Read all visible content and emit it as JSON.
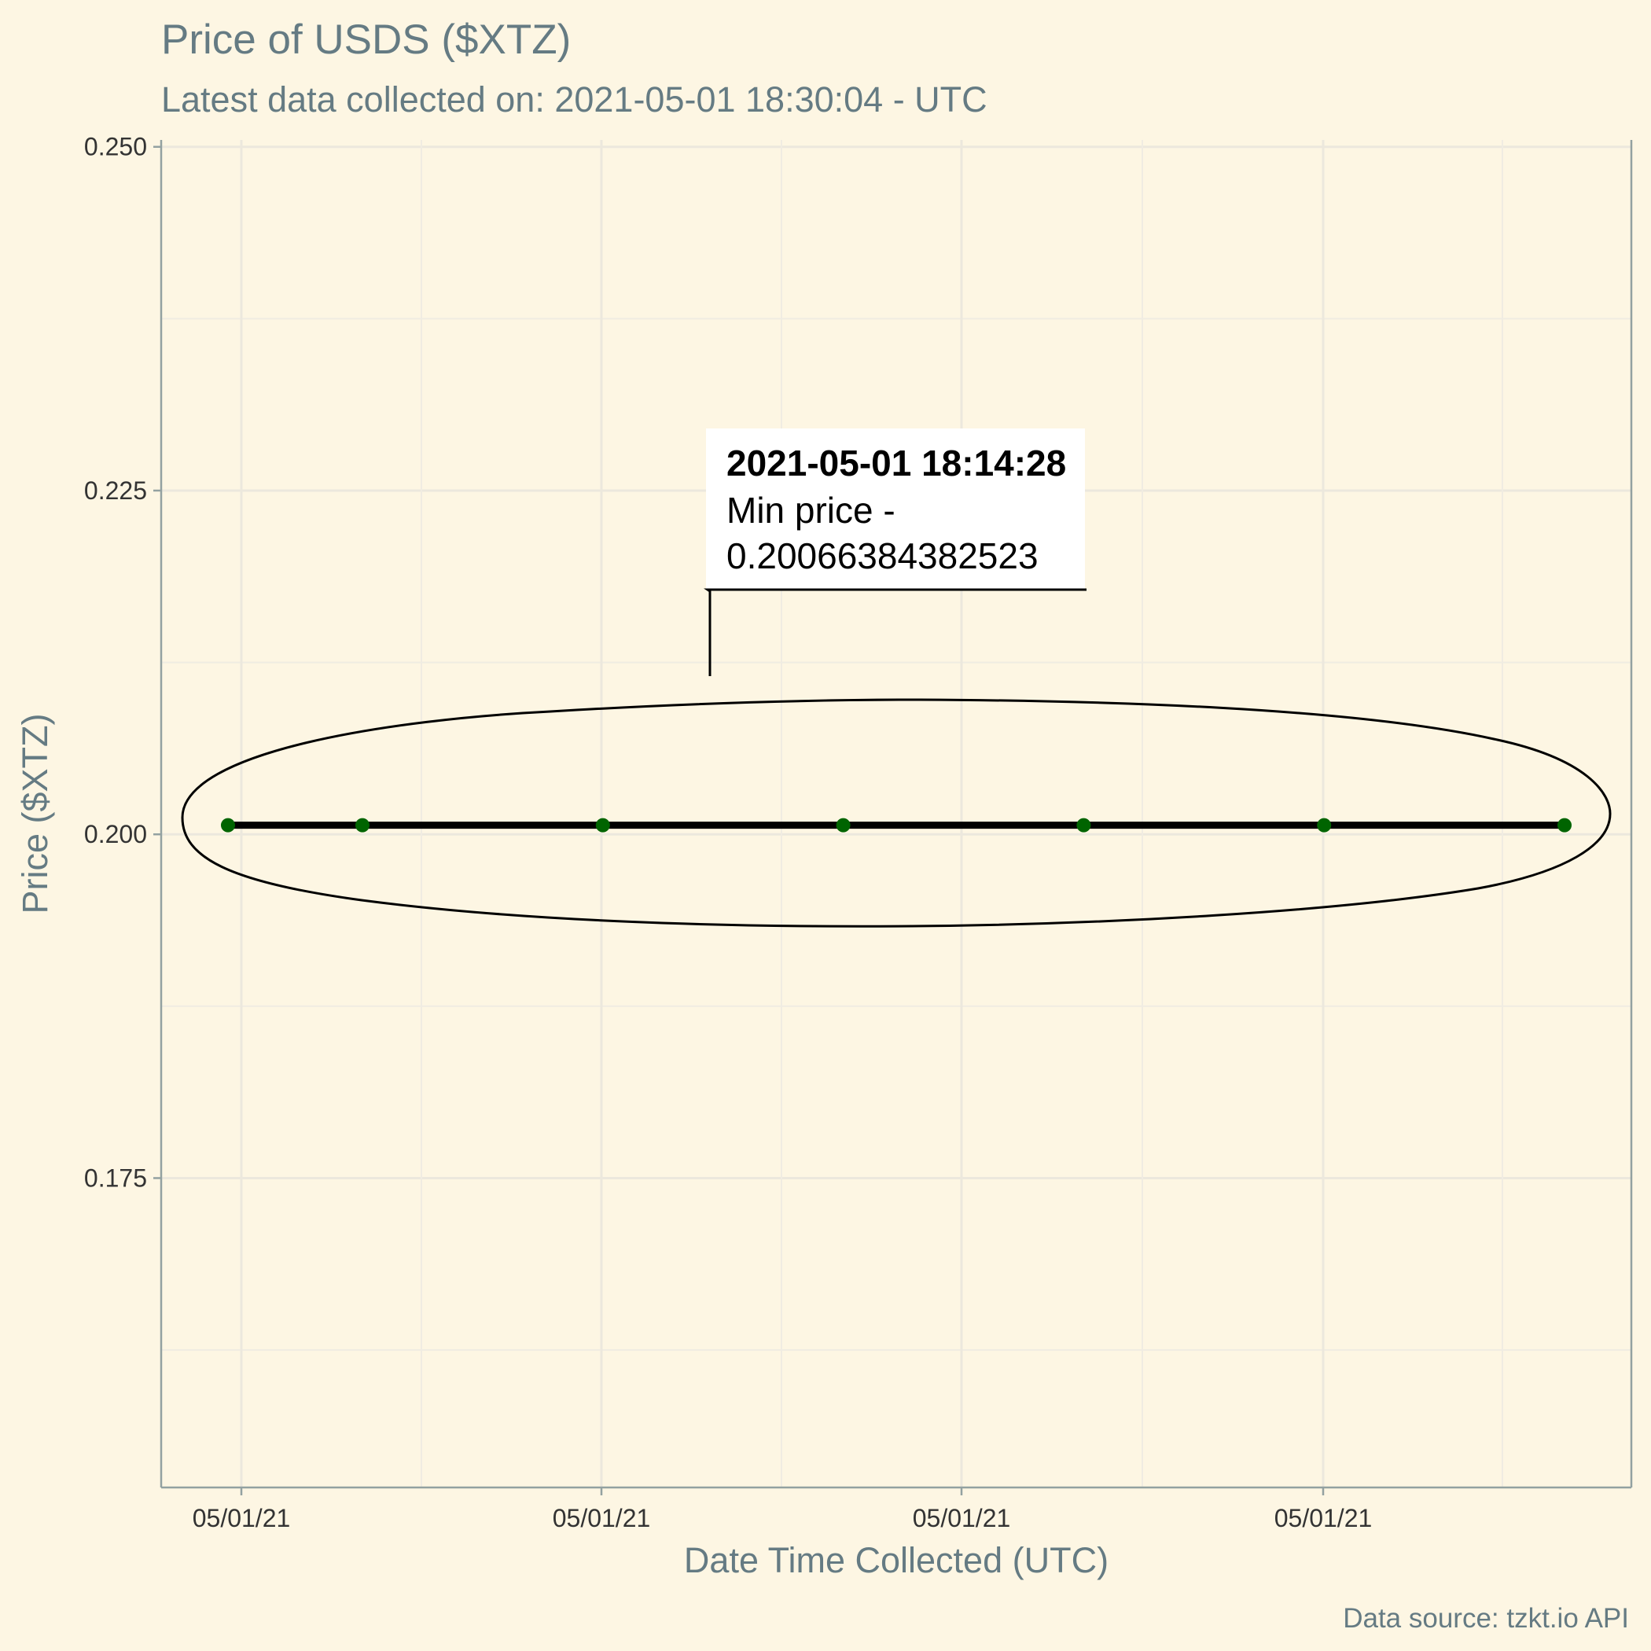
{
  "chart_data": {
    "type": "line",
    "title": "Price of USDS ($XTZ)",
    "subtitle": "Latest data collected on: 2021-05-01 18:30:04  - UTC",
    "xlabel": "Date Time Collected (UTC)",
    "ylabel": "Price ($XTZ)",
    "caption": "Data source: tzkt.io API",
    "x_tick_labels": [
      "05/01/21",
      "05/01/21",
      "05/01/21",
      "05/01/21"
    ],
    "y_ticks": [
      0.175,
      0.2,
      0.225,
      0.25
    ],
    "y_tick_labels": [
      "0.175",
      "0.200",
      "0.225",
      "0.250"
    ],
    "ylim": [
      0.1525,
      0.2505
    ],
    "grid": true,
    "line_color": "#000000",
    "point_color": "#006400",
    "series": [
      {
        "x_index": [
          0,
          1,
          2,
          3,
          4,
          5,
          6
        ],
        "values": [
          0.20066384382523,
          0.20066384382523,
          0.20066384382523,
          0.20066384382523,
          0.20066384382523,
          0.20066384382523,
          0.20066384382523
        ]
      }
    ],
    "annotation": {
      "title": "2021-05-01 18:14:28",
      "line1": "Min price -",
      "line2": "0.20066384382523"
    }
  }
}
